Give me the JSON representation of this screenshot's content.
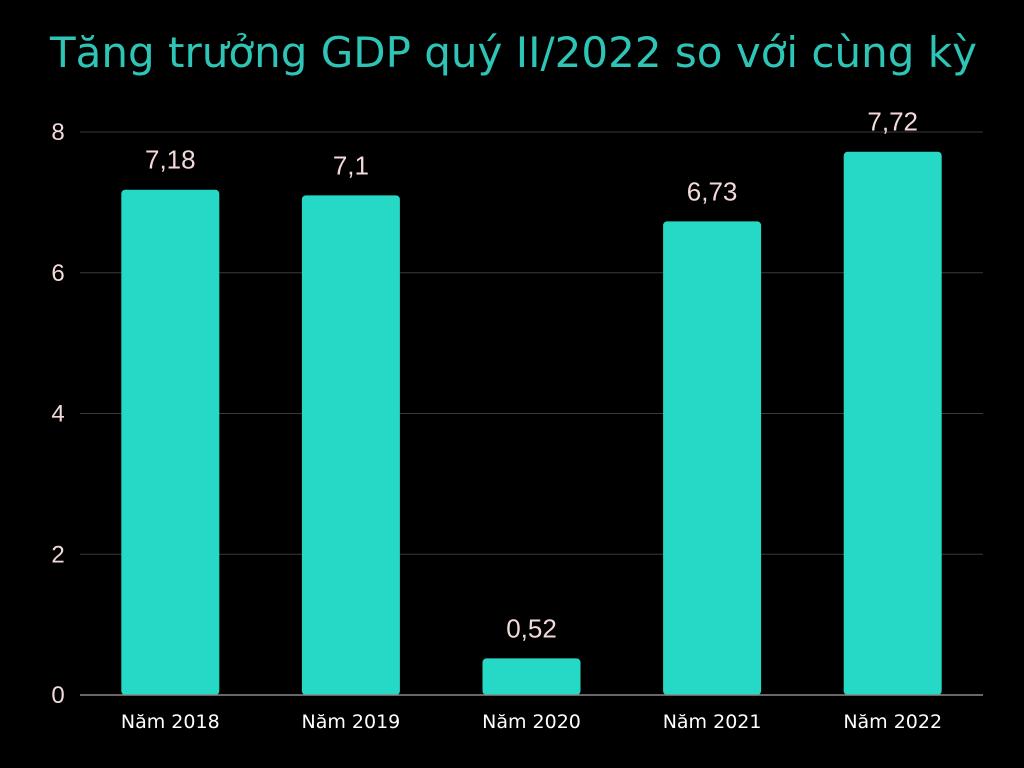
{
  "colors": {
    "background": "#000000",
    "title": "#2ec4b6",
    "bar": "#26d9c7",
    "tick_text": "#f2dada",
    "data_label_text": "#f2dada",
    "category_text": "#ffffff",
    "grid": "#3a3a3a",
    "axis": "#8a8a8a"
  },
  "chart_data": {
    "type": "bar",
    "title": "Tăng trưởng GDP quý II/2022 so với cùng kỳ",
    "xlabel": "",
    "ylabel": "",
    "categories": [
      "Năm 2018",
      "Năm 2019",
      "Năm 2020",
      "Năm 2021",
      "Năm 2022"
    ],
    "values": [
      7.18,
      7.1,
      0.52,
      6.73,
      7.72
    ],
    "data_labels": [
      "7,18",
      "7,1",
      "0,52",
      "6,73",
      "7,72"
    ],
    "ylim": [
      0,
      8
    ],
    "y_ticks": [
      0,
      2,
      4,
      6,
      8
    ],
    "y_tick_labels": [
      "0",
      "2",
      "4",
      "6",
      "8"
    ],
    "grid": true,
    "legend": "none"
  }
}
